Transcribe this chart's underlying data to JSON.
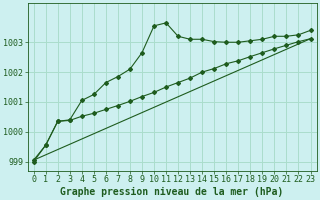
{
  "xlabel": "Graphe pression niveau de la mer (hPa)",
  "bg_color": "#cdf0f0",
  "grid_color": "#aaddcc",
  "line_color": "#1e5c1e",
  "xlim": [
    -0.5,
    23.5
  ],
  "ylim": [
    998.7,
    1004.3
  ],
  "yticks": [
    999,
    1000,
    1001,
    1002,
    1003
  ],
  "xticks": [
    0,
    1,
    2,
    3,
    4,
    5,
    6,
    7,
    8,
    9,
    10,
    11,
    12,
    13,
    14,
    15,
    16,
    17,
    18,
    19,
    20,
    21,
    22,
    23
  ],
  "line1_x": [
    0,
    1,
    2,
    3,
    4,
    5,
    6,
    7,
    8,
    9,
    10,
    11,
    12,
    13,
    14,
    15,
    16,
    17,
    18,
    19,
    20,
    21,
    22,
    23
  ],
  "line1_y": [
    999.0,
    999.55,
    1000.35,
    1000.4,
    1001.05,
    1001.25,
    1001.65,
    1001.85,
    1002.1,
    1002.65,
    1003.55,
    1003.65,
    1003.2,
    1003.1,
    1003.1,
    1003.02,
    1003.0,
    1003.0,
    1003.05,
    1003.1,
    1003.2,
    1003.2,
    1003.25,
    1003.4
  ],
  "line2_x": [
    0,
    1,
    2,
    3,
    4,
    5,
    6,
    7,
    8,
    9,
    10,
    11,
    12,
    13,
    14,
    15,
    16,
    17,
    18,
    19,
    20,
    21,
    22,
    23
  ],
  "line2_y": [
    999.05,
    999.55,
    1000.35,
    1000.38,
    1000.52,
    1000.62,
    1000.75,
    1000.88,
    1001.02,
    1001.18,
    1001.32,
    1001.5,
    1001.65,
    1001.8,
    1002.0,
    1002.12,
    1002.28,
    1002.38,
    1002.52,
    1002.65,
    1002.78,
    1002.9,
    1003.02,
    1003.12
  ],
  "line3_x": [
    0,
    23
  ],
  "line3_y": [
    999.05,
    1003.12
  ],
  "xlabel_fontsize": 7,
  "tick_fontsize": 6
}
